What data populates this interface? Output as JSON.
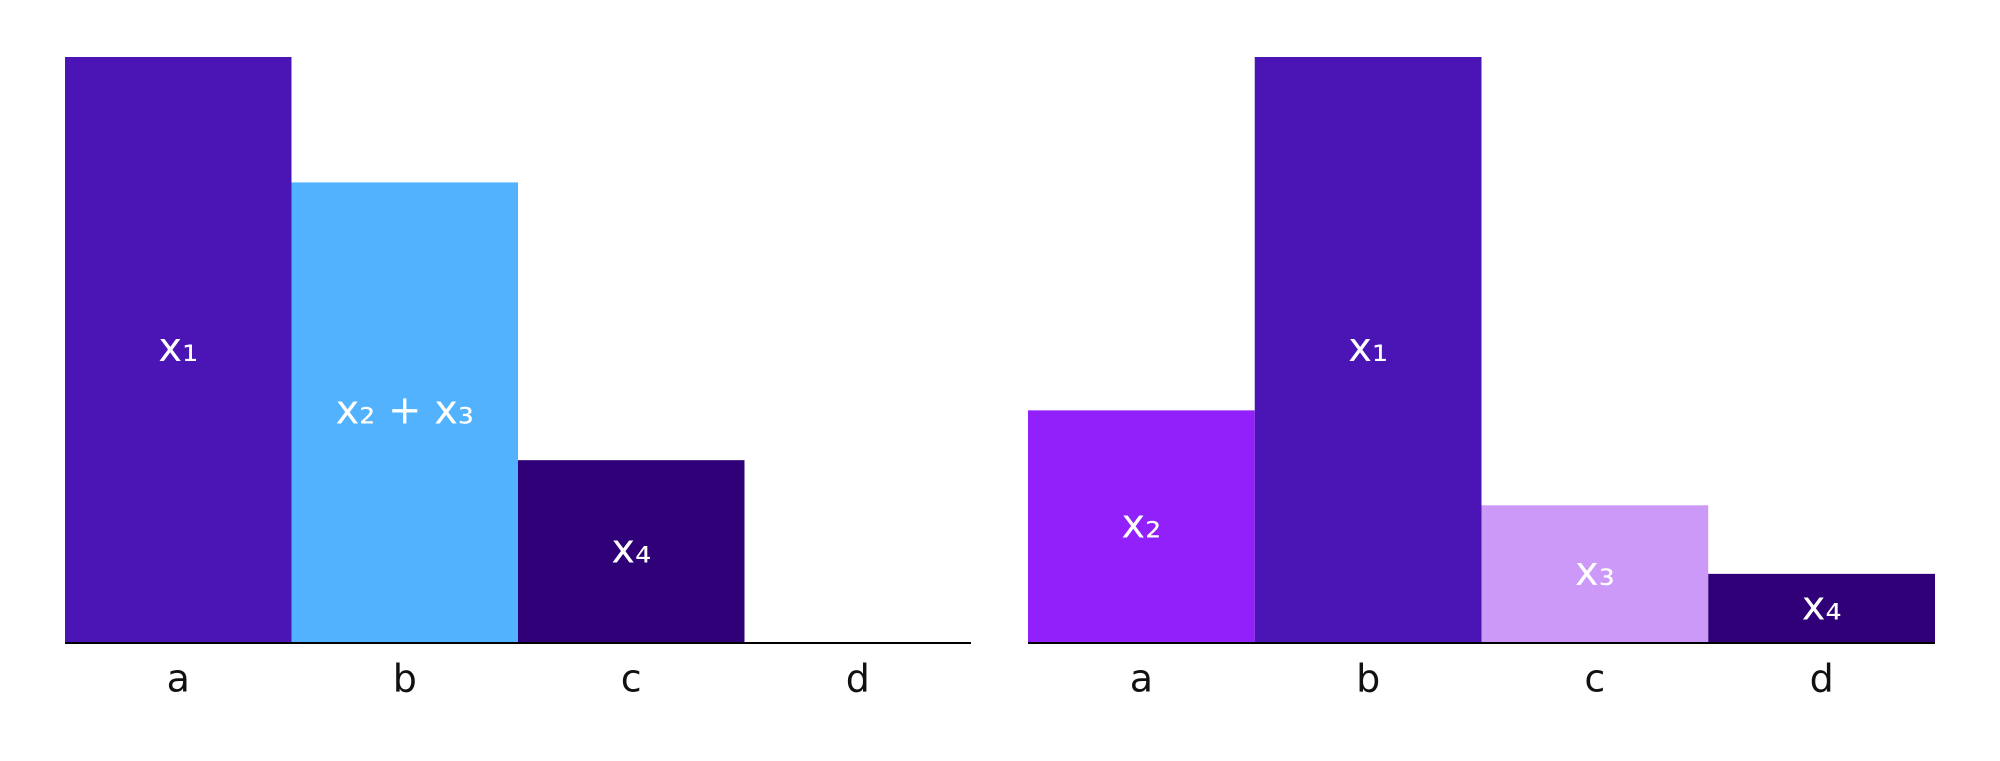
{
  "chart_data": [
    {
      "type": "bar",
      "categories": [
        "a",
        "b",
        "c",
        "d"
      ],
      "values": [
        100,
        78.6,
        31.2,
        0
      ],
      "colors": [
        "#4b14b4",
        "#52b2fd",
        "#2f0077",
        "#2f0077"
      ],
      "bar_labels": [
        "x₁",
        "x₂ + x₃",
        "x₄",
        null
      ],
      "ylim": [
        0,
        100
      ]
    },
    {
      "type": "bar",
      "categories": [
        "a",
        "b",
        "c",
        "d"
      ],
      "values": [
        39.7,
        100,
        23.5,
        11.8
      ],
      "colors": [
        "#9120fb",
        "#4b14b4",
        "#cc99f8",
        "#2f0077"
      ],
      "bar_labels": [
        "x₂",
        "x₁",
        "x₃",
        "x₄"
      ],
      "ylim": [
        0,
        100
      ]
    }
  ]
}
